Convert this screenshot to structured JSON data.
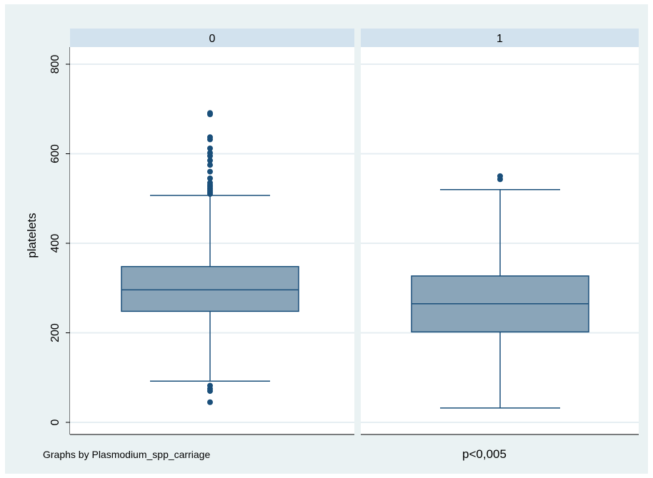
{
  "chart_data": {
    "type": "boxplot",
    "ylabel": "platelets",
    "ylim": [
      0,
      800
    ],
    "yticks": [
      0,
      200,
      400,
      600,
      800
    ],
    "grid": true,
    "note": "Graphs by Plasmodium_spp_carriage",
    "annotation": "p<0,005",
    "panels": [
      {
        "label": "0",
        "whisker_low": 92,
        "q1": 248,
        "median": 296,
        "q3": 348,
        "whisker_high": 507,
        "outliers": [
          510,
          514,
          518,
          522,
          526,
          530,
          535,
          545,
          560,
          575,
          585,
          595,
          602,
          612,
          632,
          637,
          688,
          691,
          82,
          75,
          70,
          45
        ]
      },
      {
        "label": "1",
        "whisker_low": 32,
        "q1": 202,
        "median": 265,
        "q3": 327,
        "whisker_high": 520,
        "outliers": [
          543,
          550
        ]
      }
    ]
  },
  "colors": {
    "box_fill": "#8aa5b9",
    "box_stroke": "#1a4f7a",
    "whisker": "#1a4f7a",
    "outlier": "#1a4f7a",
    "panel_header": "#d2e2ee",
    "plot_bg": "#ffffff",
    "outer_bg": "#eaf2f3",
    "grid": "#e6eef2"
  }
}
